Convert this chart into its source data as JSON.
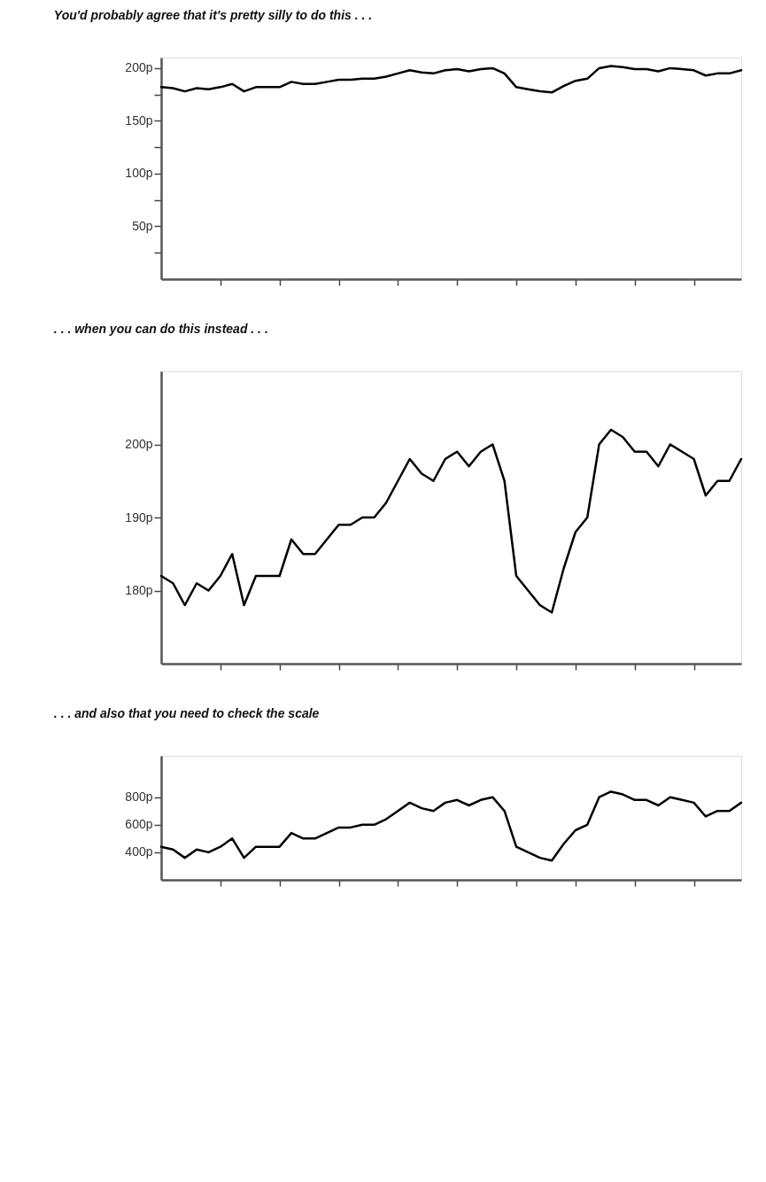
{
  "chart_data": [
    {
      "type": "line",
      "title": "You'd probably agree that it's pretty silly to do this . . .",
      "categories": [
        null,
        null,
        null,
        null,
        null,
        null,
        null,
        null,
        null,
        null,
        null,
        null,
        null,
        null,
        null,
        null,
        null,
        null,
        null,
        null,
        null,
        null,
        null,
        null,
        null,
        null,
        null,
        null,
        null,
        null,
        null,
        null,
        null,
        null,
        null,
        null,
        null,
        null,
        null,
        null,
        null,
        null,
        null,
        null,
        null,
        null,
        null,
        null,
        null,
        null
      ],
      "series": [
        {
          "color": "#000000",
          "values": [
            182,
            181,
            178,
            181,
            180,
            182,
            185,
            178,
            182,
            182,
            182,
            187,
            185,
            185,
            187,
            189,
            189,
            190,
            190,
            192,
            195,
            198,
            196,
            195,
            198,
            199,
            197,
            199,
            200,
            195,
            182,
            180,
            178,
            177,
            183,
            188,
            190,
            200,
            202,
            201,
            199,
            199,
            197,
            200,
            199,
            198,
            193,
            195,
            195,
            198
          ]
        }
      ],
      "ylim": [
        0,
        210
      ],
      "yticks": [
        {
          "value": 25,
          "label": null
        },
        {
          "value": 50,
          "label": "50p"
        },
        {
          "value": 75,
          "label": null
        },
        {
          "value": 100,
          "label": "100p"
        },
        {
          "value": 125,
          "label": null
        },
        {
          "value": 150,
          "label": "150p"
        },
        {
          "value": 175,
          "label": null
        },
        {
          "value": 200,
          "label": "200p"
        }
      ],
      "grid": false,
      "tick_labels": "y",
      "marker": "none",
      "line_style": "solid"
    },
    {
      "type": "line",
      "title": ". . . when you can do this instead . . .",
      "categories": [
        null,
        null,
        null,
        null,
        null,
        null,
        null,
        null,
        null,
        null,
        null,
        null,
        null,
        null,
        null,
        null,
        null,
        null,
        null,
        null,
        null,
        null,
        null,
        null,
        null,
        null,
        null,
        null,
        null,
        null,
        null,
        null,
        null,
        null,
        null,
        null,
        null,
        null,
        null,
        null,
        null,
        null,
        null,
        null,
        null,
        null,
        null,
        null,
        null,
        null
      ],
      "series": [
        {
          "color": "#000000",
          "values": [
            182,
            181,
            178,
            181,
            180,
            182,
            185,
            178,
            182,
            182,
            182,
            187,
            185,
            185,
            187,
            189,
            189,
            190,
            190,
            192,
            195,
            198,
            196,
            195,
            198,
            199,
            197,
            199,
            200,
            195,
            182,
            180,
            178,
            177,
            183,
            188,
            190,
            200,
            202,
            201,
            199,
            199,
            197,
            200,
            199,
            198,
            193,
            195,
            195,
            198
          ]
        }
      ],
      "ylim": [
        170,
        210
      ],
      "yticks": [
        {
          "value": 180,
          "label": "180p"
        },
        {
          "value": 190,
          "label": "190p"
        },
        {
          "value": 200,
          "label": "200p"
        }
      ],
      "grid": false,
      "tick_labels": "y",
      "marker": "none",
      "line_style": "solid"
    },
    {
      "type": "line",
      "title": ". . . and also that you need to check the scale",
      "categories": [
        null,
        null,
        null,
        null,
        null,
        null,
        null,
        null,
        null,
        null,
        null,
        null,
        null,
        null,
        null,
        null,
        null,
        null,
        null,
        null,
        null,
        null,
        null,
        null,
        null,
        null,
        null,
        null,
        null,
        null,
        null,
        null,
        null,
        null,
        null,
        null,
        null,
        null,
        null,
        null,
        null,
        null,
        null,
        null,
        null,
        null,
        null,
        null,
        null,
        null
      ],
      "series": [
        {
          "color": "#000000",
          "values": [
            440,
            420,
            360,
            420,
            400,
            440,
            500,
            360,
            440,
            440,
            440,
            540,
            500,
            500,
            540,
            580,
            580,
            600,
            600,
            640,
            700,
            760,
            720,
            700,
            760,
            780,
            740,
            780,
            800,
            700,
            440,
            400,
            360,
            340,
            460,
            560,
            600,
            800,
            840,
            820,
            780,
            780,
            740,
            800,
            780,
            760,
            660,
            700,
            700,
            760
          ]
        }
      ],
      "ylim": [
        200,
        1100
      ],
      "yticks": [
        {
          "value": 400,
          "label": "400p"
        },
        {
          "value": 600,
          "label": "600p"
        },
        {
          "value": 800,
          "label": "800p"
        }
      ],
      "grid": false,
      "tick_labels": "y",
      "marker": "none",
      "line_style": "solid"
    }
  ]
}
